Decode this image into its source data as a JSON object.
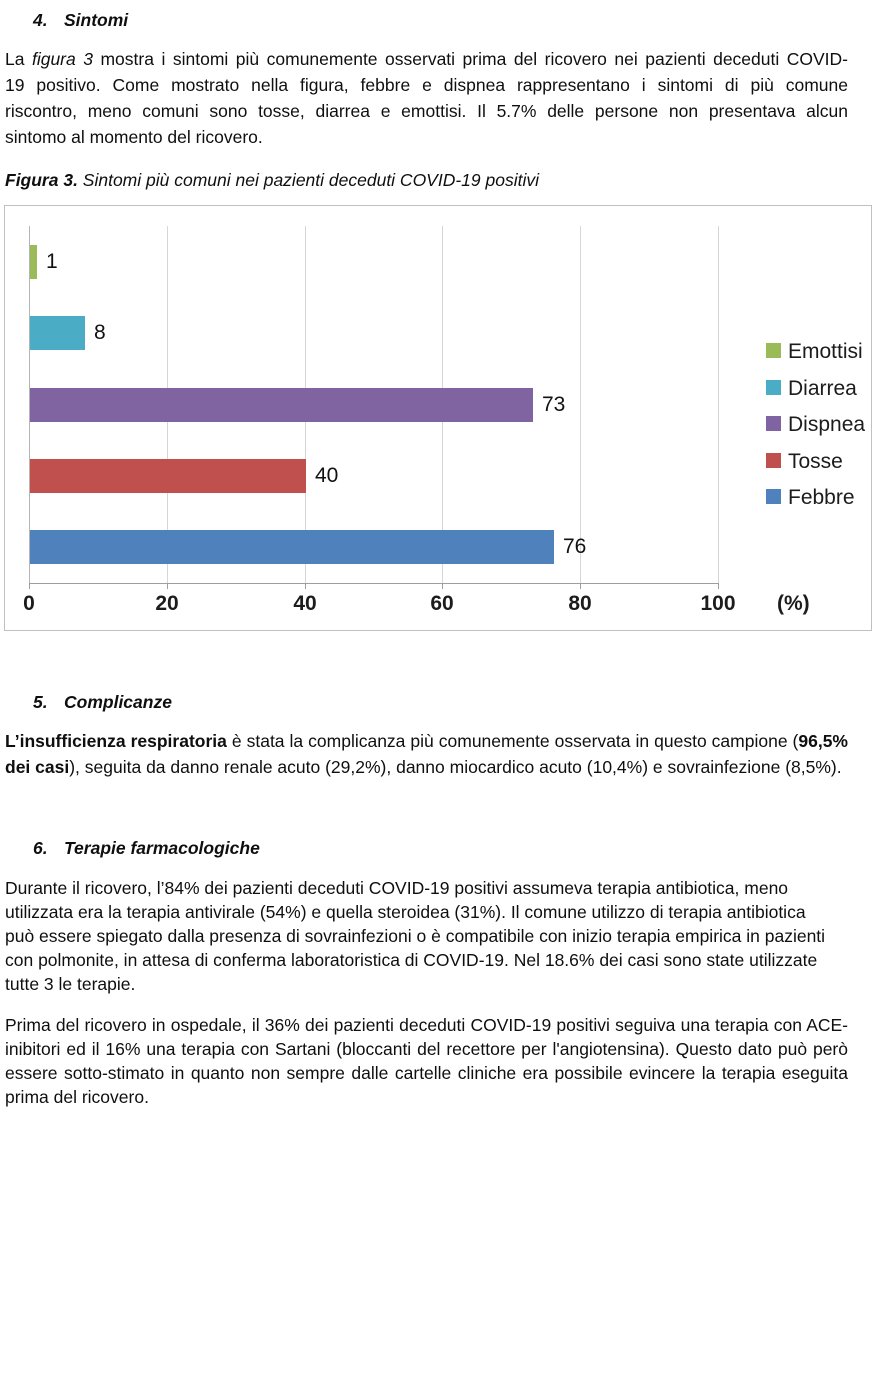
{
  "sections": {
    "s4": {
      "num": "4.",
      "label": "Sintomi"
    },
    "s5": {
      "num": "5.",
      "label": "Complicanze"
    },
    "s6": {
      "num": "6.",
      "label": "Terapie farmacologiche"
    }
  },
  "para_sintomi": {
    "lines": [
      [
        [
          "n",
          "La "
        ],
        [
          "i",
          "figura 3"
        ],
        [
          "n",
          " mostra i sintomi più comunemente osservati prima del ricovero nei pazienti deceduti COVID-"
        ]
      ],
      [
        [
          "n",
          "19  positivo. Come mostrato nella figura, febbre e dispnea rappresentano i sintomi di più comune"
        ]
      ],
      [
        [
          "n",
          "riscontro,  meno comuni sono tosse, diarrea e emottisi. Il 5.7% delle persone non presentava alcun"
        ]
      ],
      [
        [
          "n",
          "sintomo al momento del ricovero."
        ]
      ]
    ]
  },
  "figure_caption": {
    "segments": [
      [
        "bi",
        "Figura 3."
      ],
      [
        "i",
        " Sintomi più comuni nei pazienti deceduti COVID-19 positivi"
      ]
    ]
  },
  "para_complicanze": {
    "lines": [
      [
        [
          "b",
          "L’insufficienza respiratoria"
        ],
        [
          "n",
          " è stata la complicanza  più comunemente osservata in questo campione ("
        ],
        [
          "b",
          "96,5%"
        ]
      ],
      [
        [
          "b",
          "dei casi"
        ],
        [
          "n",
          "), seguita da danno renale  acuto (29,2%), danno miocardico acuto (10,4%) e sovrainfezione (8,5%)."
        ]
      ]
    ]
  },
  "para_terapie_1": {
    "lines": [
      "Durante il ricovero, l’84% dei pazienti deceduti COVID-19 positivi assumeva terapia antibiotica, meno",
      "utilizzata era la terapia antivirale (54%) e quella steroidea (31%). Il comune utilizzo di terapia antibiotica",
      "può essere spiegato dalla presenza di sovrainfezioni o è compatibile con inizio terapia empirica in pazienti",
      "con polmonite, in attesa di conferma laboratoristica di COVID-19. Nel 18.6% dei casi sono state utilizzate",
      "tutte 3 le terapie."
    ]
  },
  "para_terapie_2": {
    "lines": [
      "Prima del ricovero in ospedale, il 36% dei pazienti deceduti COVID-19  positivi seguiva una terapia con ACE-",
      "inibitori ed il 16% una terapia con Sartani (bloccanti del recettore per l'angiotensina). Questo dato può però",
      "essere sotto-stimato in quanto non sempre dalle cartelle cliniche era possibile evincere la terapia eseguita",
      "prima del ricovero."
    ]
  },
  "chart_data": {
    "type": "bar",
    "orientation": "horizontal",
    "title": "",
    "categories": [
      "Emottisi",
      "Diarrea",
      "Dispnea",
      "Tosse",
      "Febbre"
    ],
    "values": [
      1,
      8,
      73,
      40,
      76
    ],
    "colors": [
      "#9BBB59",
      "#4BACC6",
      "#8064A2",
      "#C0504D",
      "#4F81BD"
    ],
    "data_labels": [
      "1",
      "8",
      "73",
      "40",
      "76"
    ],
    "x_ticks": [
      0,
      20,
      40,
      60,
      80,
      100
    ],
    "x_tick_labels": [
      "0",
      "20",
      "40",
      "60",
      "80",
      "100"
    ],
    "x_axis_unit": "(%)",
    "xlim": [
      0,
      100
    ],
    "grid": "vertical",
    "legend": [
      "Emottisi",
      "Diarrea",
      "Dispnea",
      "Tosse",
      "Febbre"
    ],
    "legend_position": "right"
  }
}
